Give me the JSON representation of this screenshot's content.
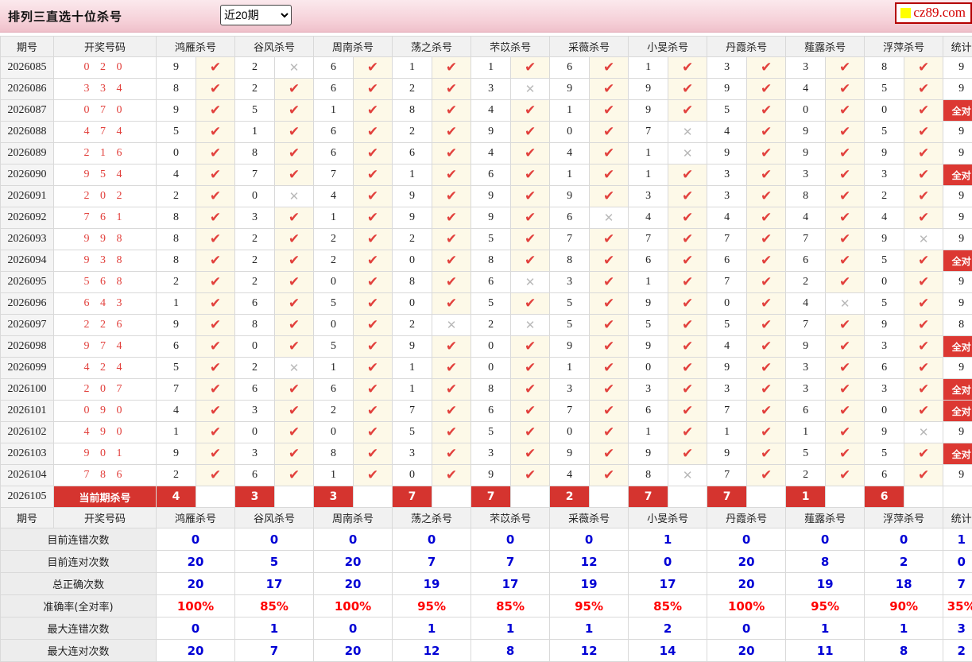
{
  "header": {
    "title": "排列三直选十位杀号",
    "range_select": "近20期",
    "logo_text": "cz89.com"
  },
  "table": {
    "col_headers": [
      "期号",
      "开奖号码",
      "鸿雁杀号",
      "谷风杀号",
      "周南杀号",
      "荡之杀号",
      "芣苡杀号",
      "采薇杀号",
      "小旻杀号",
      "丹霞杀号",
      "薤露杀号",
      "浮萍杀号",
      "统计"
    ],
    "all_correct_label": "全对",
    "hit_icon": "✔",
    "miss_icon": "✕",
    "rows": [
      {
        "period": "2026085",
        "draw": "020",
        "cells": [
          [
            "9",
            "h"
          ],
          [
            "2",
            "m"
          ],
          [
            "6",
            "h"
          ],
          [
            "1",
            "h"
          ],
          [
            "1",
            "h"
          ],
          [
            "6",
            "h"
          ],
          [
            "1",
            "h"
          ],
          [
            "3",
            "h"
          ],
          [
            "3",
            "h"
          ],
          [
            "8",
            "h"
          ]
        ],
        "stat": "9"
      },
      {
        "period": "2026086",
        "draw": "334",
        "cells": [
          [
            "8",
            "h"
          ],
          [
            "2",
            "h"
          ],
          [
            "6",
            "h"
          ],
          [
            "2",
            "h"
          ],
          [
            "3",
            "m"
          ],
          [
            "9",
            "h"
          ],
          [
            "9",
            "h"
          ],
          [
            "9",
            "h"
          ],
          [
            "4",
            "h"
          ],
          [
            "5",
            "h"
          ]
        ],
        "stat": "9"
      },
      {
        "period": "2026087",
        "draw": "070",
        "cells": [
          [
            "9",
            "h"
          ],
          [
            "5",
            "h"
          ],
          [
            "1",
            "h"
          ],
          [
            "8",
            "h"
          ],
          [
            "4",
            "h"
          ],
          [
            "1",
            "h"
          ],
          [
            "9",
            "h"
          ],
          [
            "5",
            "h"
          ],
          [
            "0",
            "h"
          ],
          [
            "0",
            "h"
          ]
        ],
        "stat": "全对"
      },
      {
        "period": "2026088",
        "draw": "474",
        "cells": [
          [
            "5",
            "h"
          ],
          [
            "1",
            "h"
          ],
          [
            "6",
            "h"
          ],
          [
            "2",
            "h"
          ],
          [
            "9",
            "h"
          ],
          [
            "0",
            "h"
          ],
          [
            "7",
            "m"
          ],
          [
            "4",
            "h"
          ],
          [
            "9",
            "h"
          ],
          [
            "5",
            "h"
          ]
        ],
        "stat": "9"
      },
      {
        "period": "2026089",
        "draw": "216",
        "cells": [
          [
            "0",
            "h"
          ],
          [
            "8",
            "h"
          ],
          [
            "6",
            "h"
          ],
          [
            "6",
            "h"
          ],
          [
            "4",
            "h"
          ],
          [
            "4",
            "h"
          ],
          [
            "1",
            "m"
          ],
          [
            "9",
            "h"
          ],
          [
            "9",
            "h"
          ],
          [
            "9",
            "h"
          ]
        ],
        "stat": "9"
      },
      {
        "period": "2026090",
        "draw": "954",
        "cells": [
          [
            "4",
            "h"
          ],
          [
            "7",
            "h"
          ],
          [
            "7",
            "h"
          ],
          [
            "1",
            "h"
          ],
          [
            "6",
            "h"
          ],
          [
            "1",
            "h"
          ],
          [
            "1",
            "h"
          ],
          [
            "3",
            "h"
          ],
          [
            "3",
            "h"
          ],
          [
            "3",
            "h"
          ]
        ],
        "stat": "全对"
      },
      {
        "period": "2026091",
        "draw": "202",
        "cells": [
          [
            "2",
            "h"
          ],
          [
            "0",
            "m"
          ],
          [
            "4",
            "h"
          ],
          [
            "9",
            "h"
          ],
          [
            "9",
            "h"
          ],
          [
            "9",
            "h"
          ],
          [
            "3",
            "h"
          ],
          [
            "3",
            "h"
          ],
          [
            "8",
            "h"
          ],
          [
            "2",
            "h"
          ]
        ],
        "stat": "9"
      },
      {
        "period": "2026092",
        "draw": "761",
        "cells": [
          [
            "8",
            "h"
          ],
          [
            "3",
            "h"
          ],
          [
            "1",
            "h"
          ],
          [
            "9",
            "h"
          ],
          [
            "9",
            "h"
          ],
          [
            "6",
            "m"
          ],
          [
            "4",
            "h"
          ],
          [
            "4",
            "h"
          ],
          [
            "4",
            "h"
          ],
          [
            "4",
            "h"
          ]
        ],
        "stat": "9"
      },
      {
        "period": "2026093",
        "draw": "998",
        "cells": [
          [
            "8",
            "h"
          ],
          [
            "2",
            "h"
          ],
          [
            "2",
            "h"
          ],
          [
            "2",
            "h"
          ],
          [
            "5",
            "h"
          ],
          [
            "7",
            "h"
          ],
          [
            "7",
            "h"
          ],
          [
            "7",
            "h"
          ],
          [
            "7",
            "h"
          ],
          [
            "9",
            "m"
          ]
        ],
        "stat": "9"
      },
      {
        "period": "2026094",
        "draw": "938",
        "cells": [
          [
            "8",
            "h"
          ],
          [
            "2",
            "h"
          ],
          [
            "2",
            "h"
          ],
          [
            "0",
            "h"
          ],
          [
            "8",
            "h"
          ],
          [
            "8",
            "h"
          ],
          [
            "6",
            "h"
          ],
          [
            "6",
            "h"
          ],
          [
            "6",
            "h"
          ],
          [
            "5",
            "h"
          ]
        ],
        "stat": "全对"
      },
      {
        "period": "2026095",
        "draw": "568",
        "cells": [
          [
            "2",
            "h"
          ],
          [
            "2",
            "h"
          ],
          [
            "0",
            "h"
          ],
          [
            "8",
            "h"
          ],
          [
            "6",
            "m"
          ],
          [
            "3",
            "h"
          ],
          [
            "1",
            "h"
          ],
          [
            "7",
            "h"
          ],
          [
            "2",
            "h"
          ],
          [
            "0",
            "h"
          ]
        ],
        "stat": "9"
      },
      {
        "period": "2026096",
        "draw": "643",
        "cells": [
          [
            "1",
            "h"
          ],
          [
            "6",
            "h"
          ],
          [
            "5",
            "h"
          ],
          [
            "0",
            "h"
          ],
          [
            "5",
            "h"
          ],
          [
            "5",
            "h"
          ],
          [
            "9",
            "h"
          ],
          [
            "0",
            "h"
          ],
          [
            "4",
            "m"
          ],
          [
            "5",
            "h"
          ]
        ],
        "stat": "9"
      },
      {
        "period": "2026097",
        "draw": "226",
        "cells": [
          [
            "9",
            "h"
          ],
          [
            "8",
            "h"
          ],
          [
            "0",
            "h"
          ],
          [
            "2",
            "m"
          ],
          [
            "2",
            "m"
          ],
          [
            "5",
            "h"
          ],
          [
            "5",
            "h"
          ],
          [
            "5",
            "h"
          ],
          [
            "7",
            "h"
          ],
          [
            "9",
            "h"
          ]
        ],
        "stat": "8"
      },
      {
        "period": "2026098",
        "draw": "974",
        "cells": [
          [
            "6",
            "h"
          ],
          [
            "0",
            "h"
          ],
          [
            "5",
            "h"
          ],
          [
            "9",
            "h"
          ],
          [
            "0",
            "h"
          ],
          [
            "9",
            "h"
          ],
          [
            "9",
            "h"
          ],
          [
            "4",
            "h"
          ],
          [
            "9",
            "h"
          ],
          [
            "3",
            "h"
          ]
        ],
        "stat": "全对"
      },
      {
        "period": "2026099",
        "draw": "424",
        "cells": [
          [
            "5",
            "h"
          ],
          [
            "2",
            "m"
          ],
          [
            "1",
            "h"
          ],
          [
            "1",
            "h"
          ],
          [
            "0",
            "h"
          ],
          [
            "1",
            "h"
          ],
          [
            "0",
            "h"
          ],
          [
            "9",
            "h"
          ],
          [
            "3",
            "h"
          ],
          [
            "6",
            "h"
          ]
        ],
        "stat": "9"
      },
      {
        "period": "2026100",
        "draw": "207",
        "cells": [
          [
            "7",
            "h"
          ],
          [
            "6",
            "h"
          ],
          [
            "6",
            "h"
          ],
          [
            "1",
            "h"
          ],
          [
            "8",
            "h"
          ],
          [
            "3",
            "h"
          ],
          [
            "3",
            "h"
          ],
          [
            "3",
            "h"
          ],
          [
            "3",
            "h"
          ],
          [
            "3",
            "h"
          ]
        ],
        "stat": "全对"
      },
      {
        "period": "2026101",
        "draw": "090",
        "cells": [
          [
            "4",
            "h"
          ],
          [
            "3",
            "h"
          ],
          [
            "2",
            "h"
          ],
          [
            "7",
            "h"
          ],
          [
            "6",
            "h"
          ],
          [
            "7",
            "h"
          ],
          [
            "6",
            "h"
          ],
          [
            "7",
            "h"
          ],
          [
            "6",
            "h"
          ],
          [
            "0",
            "h"
          ]
        ],
        "stat": "全对"
      },
      {
        "period": "2026102",
        "draw": "490",
        "cells": [
          [
            "1",
            "h"
          ],
          [
            "0",
            "h"
          ],
          [
            "0",
            "h"
          ],
          [
            "5",
            "h"
          ],
          [
            "5",
            "h"
          ],
          [
            "0",
            "h"
          ],
          [
            "1",
            "h"
          ],
          [
            "1",
            "h"
          ],
          [
            "1",
            "h"
          ],
          [
            "9",
            "m"
          ]
        ],
        "stat": "9"
      },
      {
        "period": "2026103",
        "draw": "901",
        "cells": [
          [
            "9",
            "h"
          ],
          [
            "3",
            "h"
          ],
          [
            "8",
            "h"
          ],
          [
            "3",
            "h"
          ],
          [
            "3",
            "h"
          ],
          [
            "9",
            "h"
          ],
          [
            "9",
            "h"
          ],
          [
            "9",
            "h"
          ],
          [
            "5",
            "h"
          ],
          [
            "5",
            "h"
          ]
        ],
        "stat": "全对"
      },
      {
        "period": "2026104",
        "draw": "786",
        "cells": [
          [
            "2",
            "h"
          ],
          [
            "6",
            "h"
          ],
          [
            "1",
            "h"
          ],
          [
            "0",
            "h"
          ],
          [
            "9",
            "h"
          ],
          [
            "4",
            "h"
          ],
          [
            "8",
            "m"
          ],
          [
            "7",
            "h"
          ],
          [
            "2",
            "h"
          ],
          [
            "6",
            "h"
          ]
        ],
        "stat": "9"
      }
    ],
    "current_row": {
      "period": "2026105",
      "label": "当前期杀号",
      "kills": [
        "4",
        "3",
        "3",
        "7",
        "7",
        "2",
        "7",
        "7",
        "1",
        "6"
      ],
      "stat": ""
    },
    "summary_rows": [
      {
        "label": "目前连错次数",
        "style": "blue",
        "values": [
          "0",
          "0",
          "0",
          "0",
          "0",
          "0",
          "1",
          "0",
          "0",
          "0"
        ],
        "stat": "1"
      },
      {
        "label": "目前连对次数",
        "style": "blue",
        "values": [
          "20",
          "5",
          "20",
          "7",
          "7",
          "12",
          "0",
          "20",
          "8",
          "2"
        ],
        "stat": "0"
      },
      {
        "label": "总正确次数",
        "style": "blue",
        "values": [
          "20",
          "17",
          "20",
          "19",
          "17",
          "19",
          "17",
          "20",
          "19",
          "18"
        ],
        "stat": "7"
      },
      {
        "label": "准确率(全对率)",
        "style": "red",
        "values": [
          "100%",
          "85%",
          "100%",
          "95%",
          "85%",
          "95%",
          "85%",
          "100%",
          "95%",
          "90%"
        ],
        "stat": "35%"
      },
      {
        "label": "最大连错次数",
        "style": "blue",
        "values": [
          "0",
          "1",
          "0",
          "1",
          "1",
          "1",
          "2",
          "0",
          "1",
          "1"
        ],
        "stat": "3"
      },
      {
        "label": "最大连对次数",
        "style": "blue",
        "values": [
          "20",
          "7",
          "20",
          "12",
          "8",
          "12",
          "14",
          "20",
          "11",
          "8"
        ],
        "stat": "2"
      }
    ]
  },
  "colors": {
    "accent_red": "#d5342f",
    "hit_red": "#e2413d",
    "miss_gray": "#b9b9b9",
    "value_blue": "#0000d5",
    "rate_red": "#ff0000",
    "mark_bg": "#fdf9e8",
    "topbar_pink": "#f5cfd7"
  }
}
